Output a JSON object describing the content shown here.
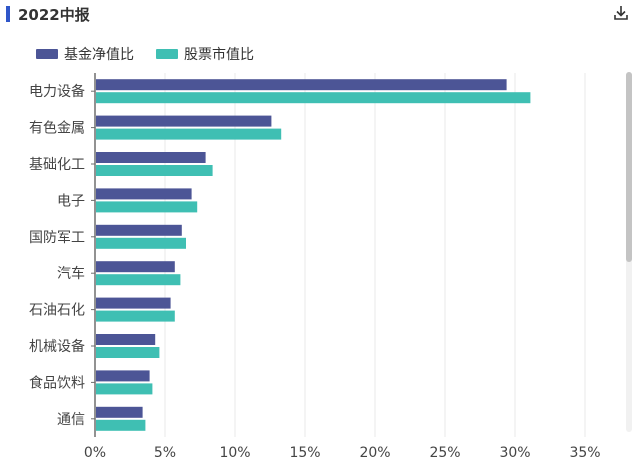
{
  "header": {
    "title": "2022中报",
    "download_icon": "download-icon"
  },
  "colors": {
    "nav": "#4c5596",
    "stock": "#3fbfb3",
    "accent": "#2f56c9"
  },
  "chart_data": {
    "type": "bar",
    "orientation": "horizontal",
    "categories": [
      "电力设备",
      "有色金属",
      "基础化工",
      "电子",
      "国防军工",
      "汽车",
      "石油石化",
      "机械设备",
      "食品饮料",
      "通信"
    ],
    "series": [
      {
        "name": "基金净值比",
        "values": [
          29.4,
          12.6,
          7.9,
          6.9,
          6.2,
          5.7,
          5.4,
          4.3,
          3.9,
          3.4
        ]
      },
      {
        "name": "股票市值比",
        "values": [
          31.1,
          13.3,
          8.4,
          7.3,
          6.5,
          6.1,
          5.7,
          4.6,
          4.1,
          3.6
        ]
      }
    ],
    "xlim": [
      0,
      35
    ],
    "xticks": [
      "0%",
      "5%",
      "10%",
      "15%",
      "20%",
      "25%",
      "30%",
      "35%"
    ],
    "grid": true,
    "legend": "top-left"
  }
}
